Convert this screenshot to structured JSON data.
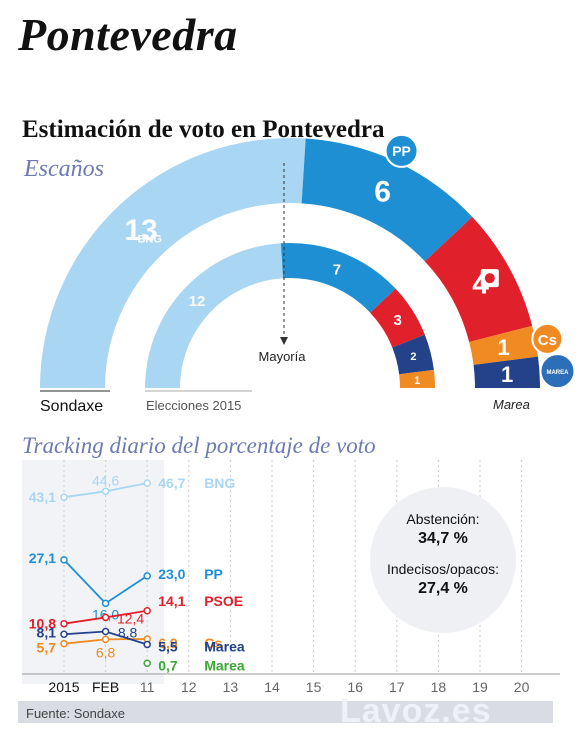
{
  "page": {
    "city": "Pontevedra",
    "title": "Estimación de voto en Pontevedra",
    "seats_subtitle": "Escaños",
    "tracking_subtitle": "Tracking diario del porcentaje de voto",
    "source": "Fuente: Sondaxe",
    "watermark": "Lavoz.es"
  },
  "chart_data": [
    {
      "type": "semicircle",
      "name": "Sondaxe",
      "label": "Sondaxe",
      "majority_label": "Mayoría",
      "slices": [
        {
          "party": "BNG",
          "seats": 13,
          "color": "#a9d6f2",
          "logo": "BNG"
        },
        {
          "party": "PP",
          "seats": 6,
          "color": "#1f8fd4",
          "logo": "PP"
        },
        {
          "party": "PSOE",
          "seats": 4,
          "color": "#e0202a",
          "logo": "psoe-rose"
        },
        {
          "party": "Cs",
          "seats": 1,
          "color": "#f08a23",
          "logo": "Cs"
        },
        {
          "party": "Marea",
          "seats": 1,
          "color": "#23428a",
          "logo": "MAREA",
          "label": "Marea"
        }
      ]
    },
    {
      "type": "semicircle",
      "name": "Elecciones 2015",
      "label": "Elecciones 2015",
      "slices": [
        {
          "party": "BNG",
          "seats": 12,
          "color": "#a9d6f2"
        },
        {
          "party": "PP",
          "seats": 7,
          "color": "#1f8fd4"
        },
        {
          "party": "PSOE",
          "seats": 3,
          "color": "#e0202a"
        },
        {
          "party": "Marea",
          "seats": 2,
          "color": "#23428a"
        },
        {
          "party": "Cs",
          "seats": 1,
          "color": "#f08a23"
        }
      ]
    },
    {
      "type": "line",
      "x_ticks": [
        "2015",
        "FEB",
        "11",
        "12",
        "13",
        "14",
        "15",
        "16",
        "17",
        "18",
        "19",
        "20"
      ],
      "series": [
        {
          "name": "BNG",
          "color": "#a9d6f2",
          "x": [
            "2015",
            "FEB",
            "11"
          ],
          "values": [
            43.1,
            44.6,
            46.7
          ],
          "labels": [
            "43,1",
            "44,6",
            "46,7"
          ]
        },
        {
          "name": "PP",
          "color": "#1f8fd4",
          "x": [
            "2015",
            "FEB",
            "11"
          ],
          "values": [
            27.1,
            16.0,
            23.0
          ],
          "labels": [
            "27,1",
            "16,0",
            "23,0"
          ]
        },
        {
          "name": "PSOE",
          "color": "#e0202a",
          "x": [
            "2015",
            "FEB",
            "11"
          ],
          "values": [
            10.8,
            12.4,
            14.1
          ],
          "labels": [
            "10,8",
            "12,4",
            "14,1"
          ]
        },
        {
          "name": "Cs",
          "color": "#f08a23",
          "x": [
            "2015",
            "FEB",
            "11"
          ],
          "values": [
            5.7,
            6.8,
            6.9
          ],
          "labels": [
            "5,7",
            "6,8",
            "6,9"
          ]
        },
        {
          "name": "Marea",
          "color": "#23428a",
          "x": [
            "2015",
            "FEB",
            "11"
          ],
          "values": [
            8.1,
            8.8,
            5.5
          ],
          "labels": [
            "8,1",
            "8,8",
            "5,5"
          ]
        },
        {
          "name": "Marea",
          "color": "#3aa935",
          "x": [
            "11"
          ],
          "values": [
            0.7
          ],
          "labels": [
            "0,7"
          ]
        }
      ],
      "annotations": [
        {
          "label": "Abstención:",
          "value": "34,7 %"
        },
        {
          "label": "Indecisos/opacos:",
          "value": "27,4 %"
        }
      ]
    }
  ]
}
